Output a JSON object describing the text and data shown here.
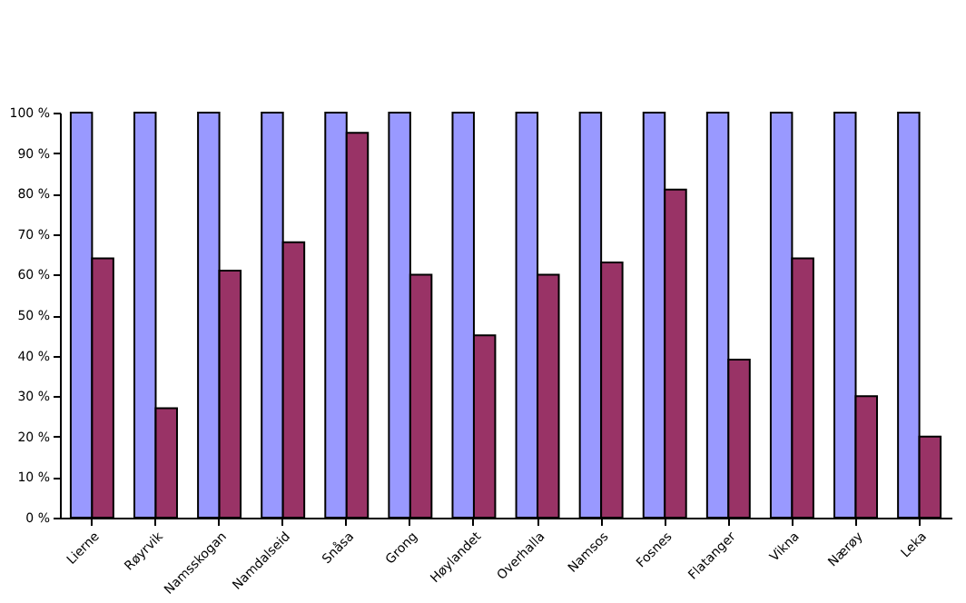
{
  "chart_data": {
    "type": "bar",
    "categories": [
      "Lierne",
      "Røyrvik",
      "Namsskogan",
      "Namdalseid",
      "Snåsa",
      "Grong",
      "Høylandet",
      "Overhalla",
      "Namsos",
      "Fosnes",
      "Flatanger",
      "Vikna",
      "Nærøy",
      "Leka"
    ],
    "series": [
      {
        "color": "#9999ff",
        "values": [
          100,
          100,
          100,
          100,
          100,
          100,
          100,
          100,
          100,
          100,
          100,
          100,
          100,
          100
        ]
      },
      {
        "color": "#993366",
        "values": [
          64,
          27,
          61,
          68,
          95,
          60,
          45,
          60,
          63,
          81,
          39,
          64,
          30,
          20
        ]
      }
    ],
    "ylim": [
      0,
      100
    ],
    "yticks": [
      {
        "value": 0,
        "label": "0 %"
      },
      {
        "value": 10,
        "label": "10 %"
      },
      {
        "value": 20,
        "label": "20 %"
      },
      {
        "value": 30,
        "label": "30 %"
      },
      {
        "value": 40,
        "label": "40 %"
      },
      {
        "value": 50,
        "label": "50 %"
      },
      {
        "value": 60,
        "label": "60 %"
      },
      {
        "value": 70,
        "label": "70 %"
      },
      {
        "value": 80,
        "label": "80 %"
      },
      {
        "value": 90,
        "label": "90 %"
      },
      {
        "value": 100,
        "label": "100 %"
      }
    ],
    "grid": false,
    "legend": false
  }
}
